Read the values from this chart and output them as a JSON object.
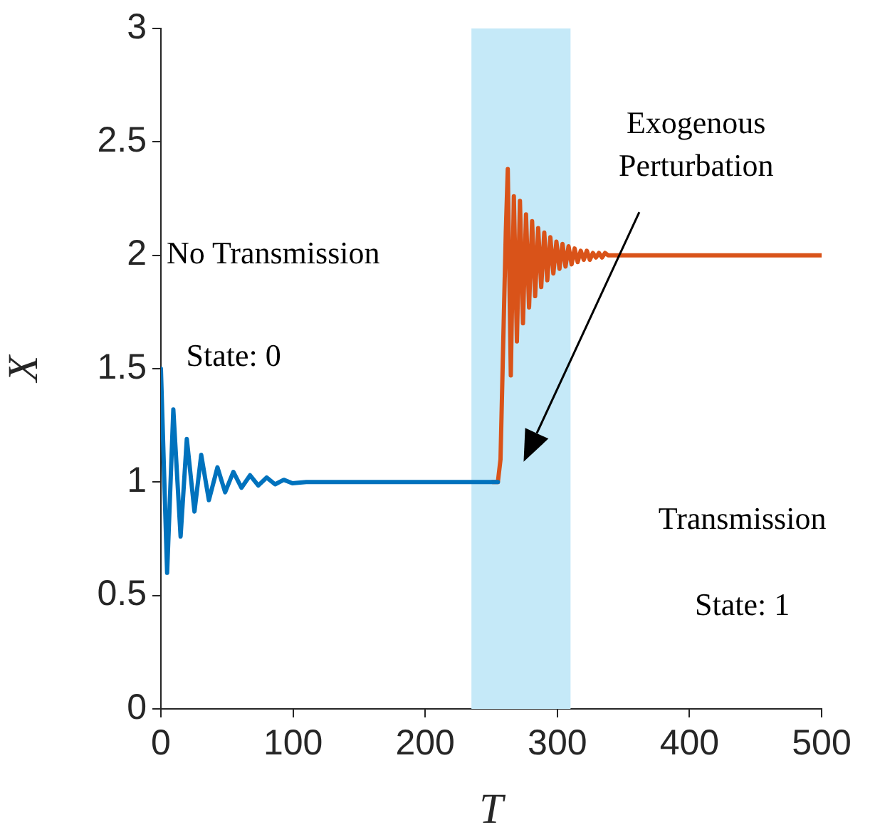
{
  "chart_data": {
    "type": "line",
    "xlabel": "T",
    "ylabel": "X",
    "xlim": [
      0,
      500
    ],
    "xticks": [
      0,
      100,
      200,
      300,
      400,
      500
    ],
    "ylim": [
      0,
      3
    ],
    "yticks": [
      0,
      0.5,
      1,
      1.5,
      2,
      2.5,
      3
    ],
    "grid": false,
    "legend": false,
    "marker": "none",
    "line_style": "solid",
    "bands": [
      {
        "axis": "x",
        "from": 235,
        "to": 310,
        "color": "#c5e9f8"
      }
    ],
    "annotations": [
      "No Transmission",
      "State: 0",
      "Transmission",
      "State: 1",
      "Exogenous\nPerturbation"
    ],
    "series": [
      {
        "color": "#0072bd",
        "x": [
          0,
          4.7,
          9.4,
          14.9,
          19.6,
          25.4,
          30.5,
          36.3,
          42.8,
          48.6,
          54.8,
          61,
          67.5,
          73.7,
          80,
          86.4,
          93,
          99.5,
          110,
          255
        ],
        "values": [
          1.5,
          0.6,
          1.32,
          0.76,
          1.19,
          0.87,
          1.12,
          0.92,
          1.065,
          0.955,
          1.045,
          0.975,
          1.03,
          0.985,
          1.02,
          0.99,
          1.01,
          0.995,
          1,
          1
        ]
      },
      {
        "color": "#d95319",
        "x": [
          251,
          255,
          257,
          259,
          261,
          262.5,
          264.8,
          267.1,
          269.4,
          271.7,
          274,
          276.3,
          278.6,
          280.9,
          283.2,
          285.5,
          287.8,
          290.1,
          292.4,
          294.7,
          297,
          299.3,
          301.6,
          303.9,
          306.2,
          308.5,
          310.8,
          313.1,
          315.4,
          317.7,
          320,
          322.3,
          324.6,
          326.9,
          329.2,
          331.5,
          333.8,
          336.1,
          338.4,
          340.7,
          343,
          346,
          500
        ],
        "values": [
          1,
          1,
          1.1,
          1.6,
          2.1,
          2.38,
          1.47,
          2.26,
          1.62,
          2.24,
          1.7,
          2.18,
          1.77,
          2.15,
          1.82,
          2.12,
          1.86,
          2.1,
          1.89,
          2.08,
          1.92,
          2.06,
          1.94,
          2.05,
          1.95,
          2.04,
          1.96,
          2.03,
          1.97,
          2.02,
          1.98,
          2.02,
          1.98,
          2.01,
          1.99,
          2.01,
          1.99,
          2.01,
          2,
          2,
          2,
          2,
          2
        ]
      }
    ]
  }
}
